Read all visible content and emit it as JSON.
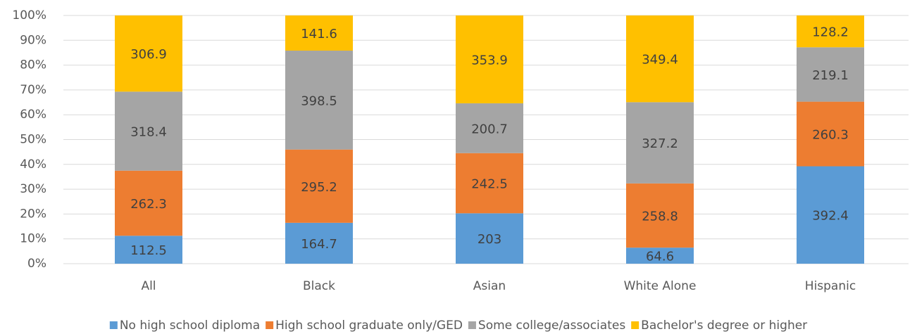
{
  "chart_data": {
    "type": "bar",
    "stacking": "percent",
    "categories": [
      "All",
      "Black",
      "Asian",
      "White Alone",
      "Hispanic"
    ],
    "series": [
      {
        "name": "No high school diploma",
        "color": "#5b9bd5",
        "values": [
          112.5,
          164.7,
          203,
          64.6,
          392.4
        ]
      },
      {
        "name": "High school graduate only/GED",
        "color": "#ed7d31",
        "values": [
          262.3,
          295.2,
          242.5,
          258.8,
          260.3
        ]
      },
      {
        "name": "Some college/associates",
        "color": "#a5a5a5",
        "values": [
          318.4,
          398.5,
          200.7,
          327.2,
          219.1
        ]
      },
      {
        "name": "Bachelor's degree or higher",
        "color": "#ffc000",
        "values": [
          306.9,
          141.6,
          353.9,
          349.4,
          128.2
        ]
      }
    ],
    "ylim": [
      0,
      100
    ],
    "yticks": [
      {
        "value": 0,
        "label": "0%"
      },
      {
        "value": 10,
        "label": "10%"
      },
      {
        "value": 20,
        "label": "20%"
      },
      {
        "value": 30,
        "label": "30%"
      },
      {
        "value": 40,
        "label": "40%"
      },
      {
        "value": 50,
        "label": "50%"
      },
      {
        "value": 60,
        "label": "60%"
      },
      {
        "value": 70,
        "label": "70%"
      },
      {
        "value": 80,
        "label": "80%"
      },
      {
        "value": 90,
        "label": "90%"
      },
      {
        "value": 100,
        "label": "100%"
      }
    ],
    "grid": true,
    "legend": "bottom"
  }
}
